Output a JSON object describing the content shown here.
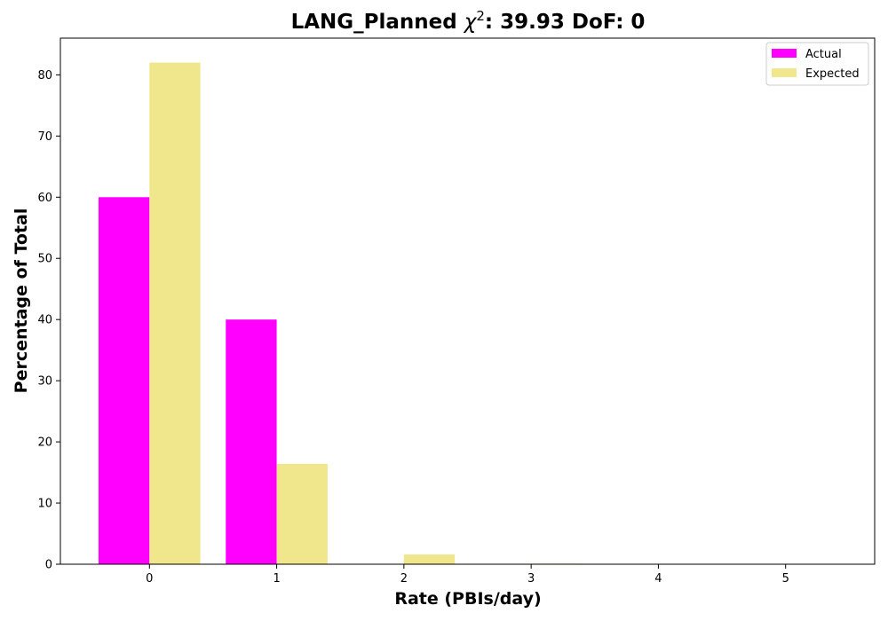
{
  "chart_data": {
    "type": "bar",
    "title_prefix": "LANG_Planned ",
    "title_chi": "χ",
    "title_sup": "2",
    "title_suffix": ": 39.93 DoF: 0",
    "xlabel": "Rate (PBIs/day)",
    "ylabel": "Percentage of Total",
    "categories": [
      0,
      1,
      2,
      3,
      4,
      5
    ],
    "xlim": [
      -0.7,
      5.7
    ],
    "ylim": [
      0,
      86
    ],
    "yticks": [
      0,
      10,
      20,
      30,
      40,
      50,
      60,
      70,
      80
    ],
    "grid": false,
    "legend_position": "top-right",
    "series": [
      {
        "name": "Actual",
        "color": "#ff00ff",
        "values": [
          60,
          40,
          0,
          0,
          0,
          0
        ]
      },
      {
        "name": "Expected",
        "color": "#f0e68c",
        "values": [
          82,
          16.4,
          1.6,
          0.1,
          0,
          0
        ]
      }
    ]
  }
}
